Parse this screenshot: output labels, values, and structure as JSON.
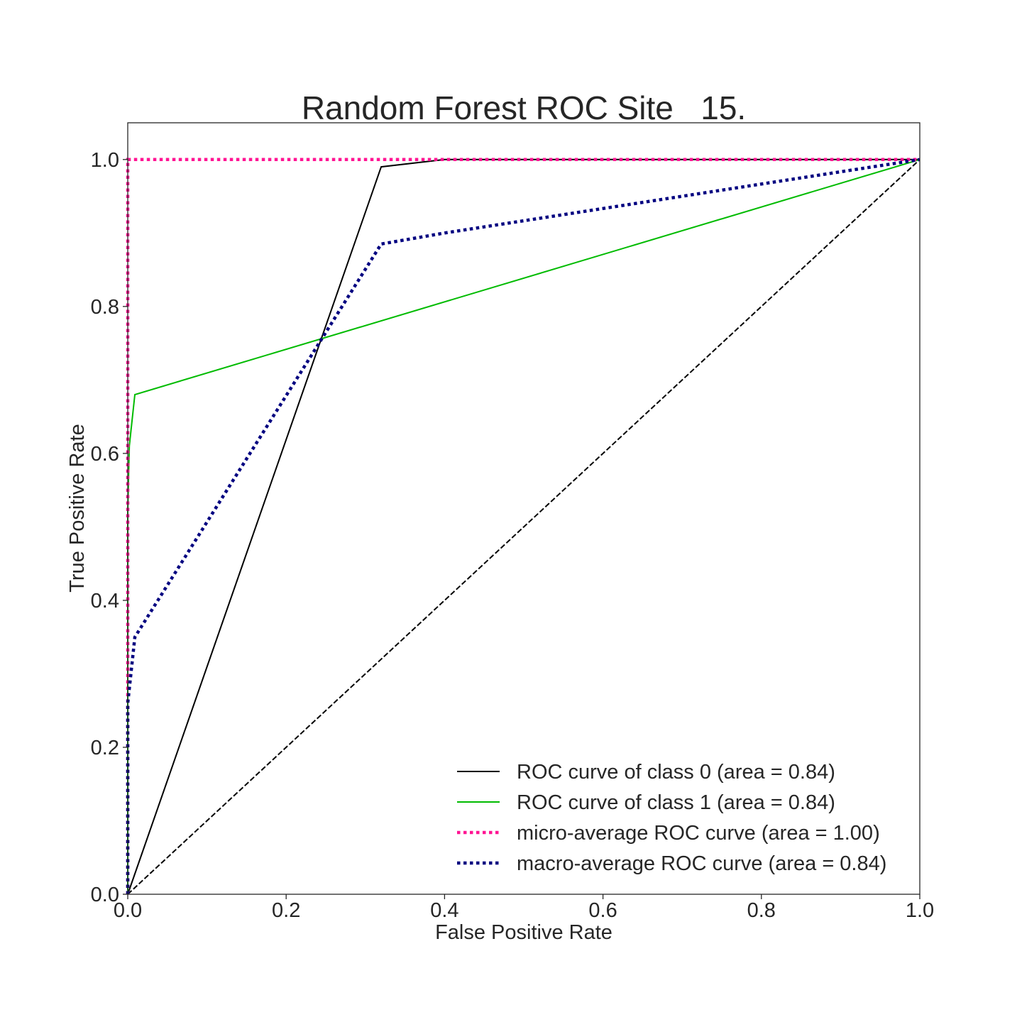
{
  "chart_data": {
    "type": "line",
    "title": "Random Forest ROC Site _15.",
    "xlabel": "False Positive Rate",
    "ylabel": "True Positive Rate",
    "xlim": [
      0.0,
      1.0
    ],
    "ylim": [
      0.0,
      1.05
    ],
    "xticks": [
      "0.0",
      "0.2",
      "0.4",
      "0.6",
      "0.8",
      "1.0"
    ],
    "yticks": [
      "0.0",
      "0.2",
      "0.4",
      "0.6",
      "0.8",
      "1.0"
    ],
    "grid": false,
    "legend_position": "lower-right",
    "series": [
      {
        "name": "ROC curve of class 0 (area = 0.84)",
        "color": "#000000",
        "style": "solid",
        "x": [
          0.0,
          0.32,
          0.4,
          1.0
        ],
        "y": [
          0.0,
          0.99,
          1.0,
          1.0
        ]
      },
      {
        "name": "ROC curve of class 1 (area = 0.84)",
        "color": "#00bb00",
        "style": "solid",
        "x": [
          0.0,
          0.0,
          0.002,
          0.009,
          1.0
        ],
        "y": [
          0.0,
          0.52,
          0.61,
          0.68,
          1.0
        ]
      },
      {
        "name": "micro-average ROC curve (area = 1.00)",
        "color": "#ff1493",
        "style": "dotted",
        "x": [
          0.0,
          0.0,
          1.0
        ],
        "y": [
          0.0,
          1.0,
          1.0
        ]
      },
      {
        "name": "macro-average ROC curve (area = 0.84)",
        "color": "#000080",
        "style": "dotted",
        "x": [
          0.0,
          0.0,
          0.009,
          0.32,
          0.4,
          1.0
        ],
        "y": [
          0.0,
          0.26,
          0.35,
          0.885,
          0.9,
          1.0
        ]
      }
    ],
    "reference_line": {
      "color": "#000000",
      "style": "dashed",
      "x": [
        0.0,
        1.0
      ],
      "y": [
        0.0,
        1.0
      ]
    }
  }
}
